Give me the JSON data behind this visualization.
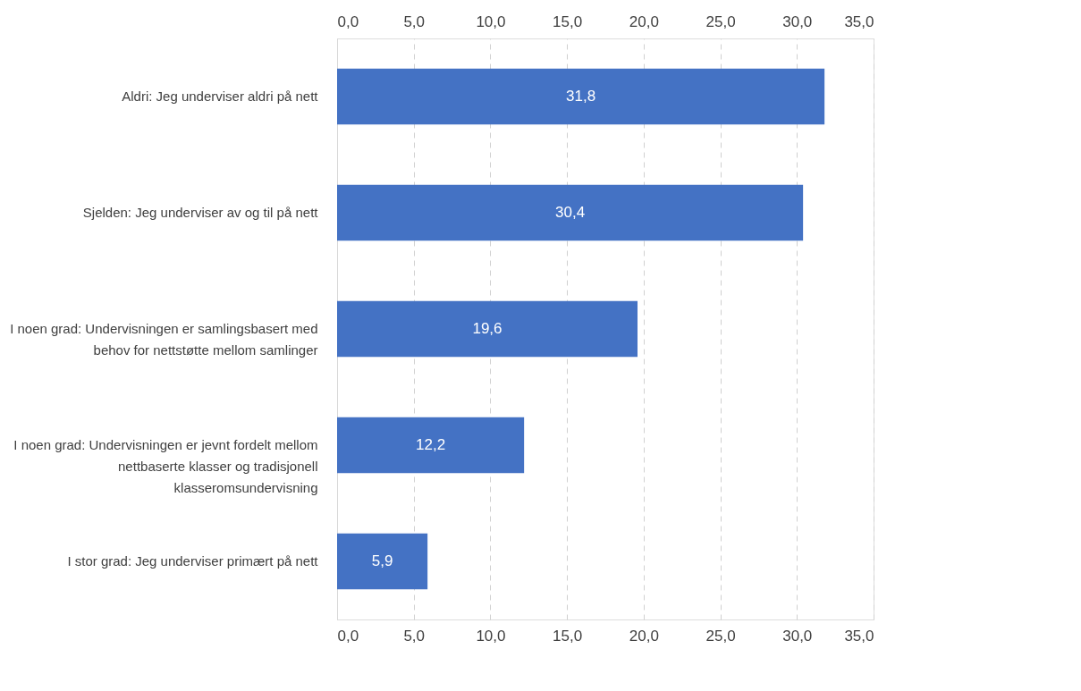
{
  "chart_data": {
    "type": "bar",
    "orientation": "horizontal",
    "categories": [
      "Aldri: Jeg underviser aldri på nett",
      "Sjelden: Jeg underviser av og til på nett",
      "I noen grad: Undervisningen er samlingsbasert med behov for nettstøtte mellom samlinger",
      "I noen grad: Undervisningen er jevnt fordelt mellom nettbaserte klasser og tradisjonell klasseromsundervisning",
      "I stor grad: Jeg underviser primært på nett"
    ],
    "values": [
      31.8,
      30.4,
      19.6,
      12.2,
      5.9
    ],
    "value_labels": [
      "31,8",
      "30,4",
      "19,6",
      "12,2",
      "5,9"
    ],
    "color": "#4472c4",
    "xlim": [
      0,
      35
    ],
    "xticks": [
      {
        "value": 0,
        "label": "0,0"
      },
      {
        "value": 5,
        "label": "5,0"
      },
      {
        "value": 10,
        "label": "10,0"
      },
      {
        "value": 15,
        "label": "15,0"
      },
      {
        "value": 20,
        "label": "20,0"
      },
      {
        "value": 25,
        "label": "25,0"
      },
      {
        "value": 30,
        "label": "30,0"
      },
      {
        "value": 35,
        "label": "35,0"
      }
    ],
    "x2lim": [
      0,
      35
    ],
    "x2ticks": [
      {
        "value": 0,
        "label": "0,0"
      },
      {
        "value": 5,
        "label": "5,0"
      },
      {
        "value": 10,
        "label": "10,0"
      },
      {
        "value": 15,
        "label": "15,0"
      },
      {
        "value": 20,
        "label": "20,0"
      },
      {
        "value": 25,
        "label": "25,0"
      },
      {
        "value": 30,
        "label": "30,0"
      },
      {
        "value": 35,
        "label": "35,0"
      }
    ],
    "grid": "x"
  }
}
